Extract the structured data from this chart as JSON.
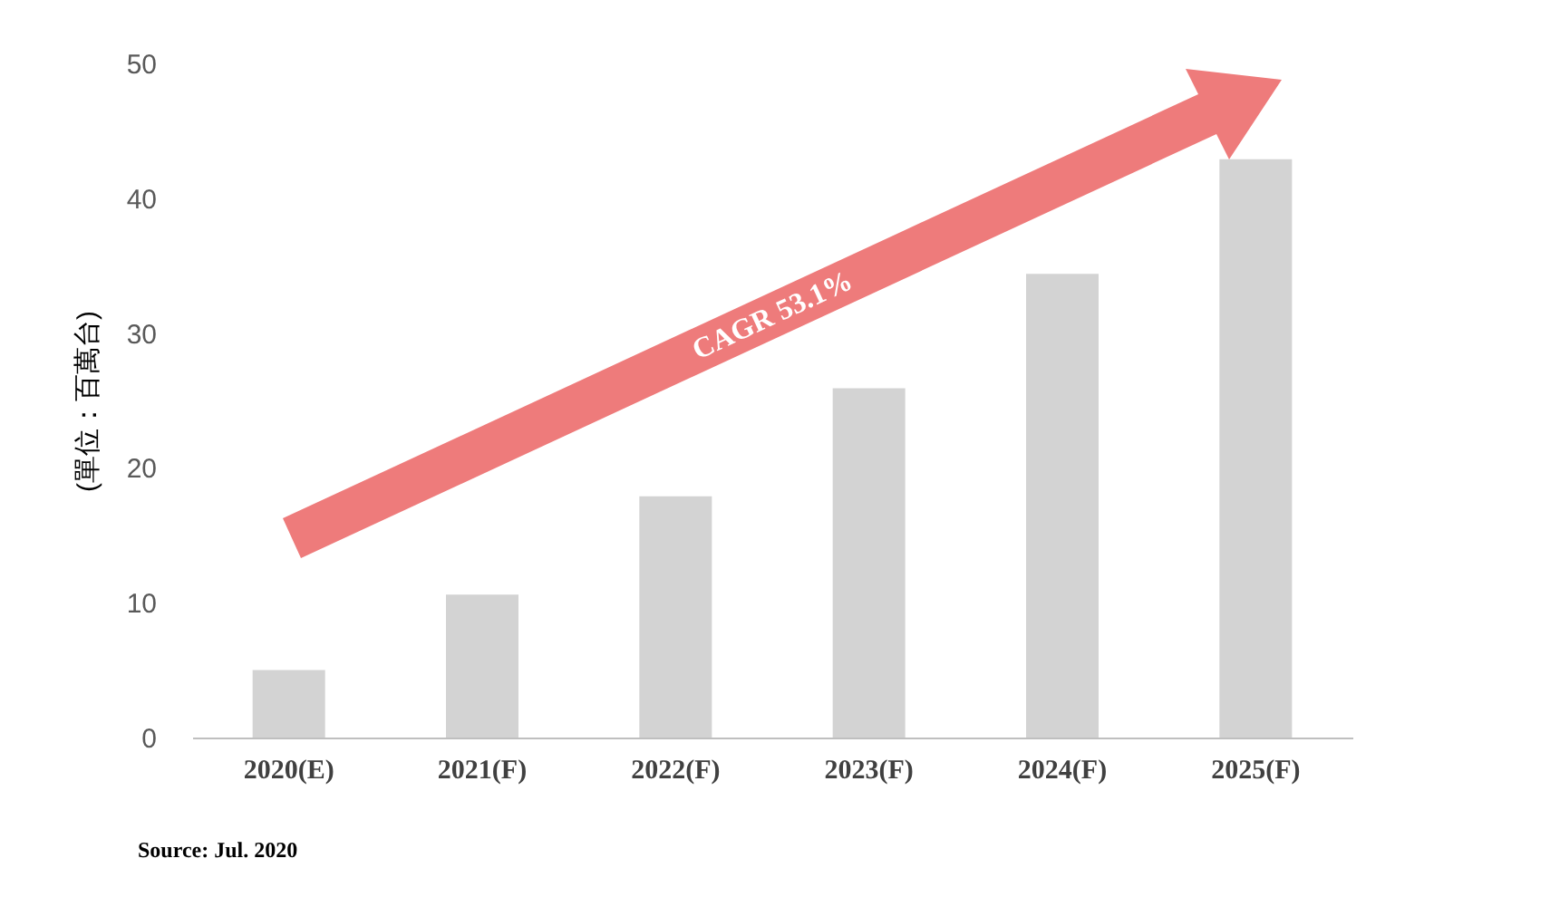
{
  "chart_data": {
    "type": "bar",
    "categories": [
      "2020(E)",
      "2021(F)",
      "2022(F)",
      "2023(F)",
      "2024(F)",
      "2025(F)"
    ],
    "values": [
      5.0,
      10.6,
      17.9,
      25.9,
      34.4,
      42.9
    ],
    "color": "#d3d3d3",
    "ylabel": "(單位：百萬台)",
    "ylim": [
      0,
      50
    ],
    "yticks": [
      0,
      10,
      20,
      30,
      40,
      50
    ],
    "grid": false,
    "annotations": [
      "CAGR 53.1%",
      "Source: Jul. 2020"
    ]
  }
}
